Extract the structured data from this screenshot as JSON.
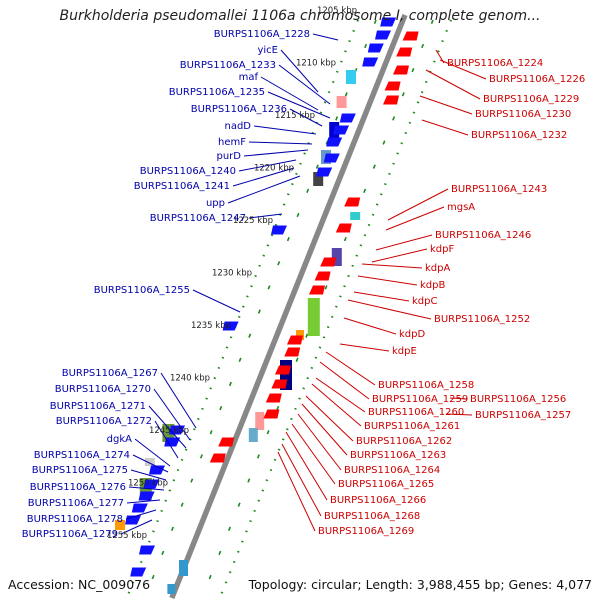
{
  "title": "Burkholderia pseudomallei 1106a chromosome I, complete genom...",
  "footer": {
    "accession": "Accession: NC_009076",
    "topology": "Topology: circular; Length: 3,988,455 bp; Genes: 4,077"
  },
  "colors": {
    "forward_label": "#0000aa",
    "reverse_label": "#cc0000",
    "forward_gene": "#1010ff",
    "reverse_gene": "#ff0000",
    "backbone": "#888888",
    "tick": "#1a8a1a"
  },
  "ticks": [
    "1205 kbp",
    "1210 kbp",
    "1215 kbp",
    "1220 kbp",
    "1225 kbp",
    "1230 kbp",
    "1235 kbp",
    "1240 kbp",
    "1245 kbp",
    "1250 kbp",
    "1255 kbp"
  ],
  "left_labels": [
    "BURPS1106A_1228",
    "yicE",
    "BURPS1106A_1233",
    "maf",
    "BURPS1106A_1235",
    "BURPS1106A_1236",
    "nadD",
    "hemF",
    "purD",
    "BURPS1106A_1240",
    "BURPS1106A_1241",
    "upp",
    "BURPS1106A_1247",
    "BURPS1106A_1255",
    "BURPS1106A_1267",
    "BURPS1106A_1270",
    "BURPS1106A_1271",
    "BURPS1106A_1272",
    "dgkA",
    "BURPS1106A_1274",
    "BURPS1106A_1275",
    "BURPS1106A_1276",
    "BURPS1106A_1277",
    "BURPS1106A_1278",
    "BURPS1106A_1279"
  ],
  "right_labels": [
    "BURPS1106A_1224",
    "BURPS1106A_1226",
    "BURPS1106A_1229",
    "BURPS1106A_1230",
    "BURPS1106A_1232",
    "BURPS1106A_1243",
    "mgsA",
    "BURPS1106A_1246",
    "kdpF",
    "kdpA",
    "kdpB",
    "kdpC",
    "BURPS1106A_1252",
    "kdpD",
    "kdpE",
    "BURPS1106A_1258",
    "BURPS1106A_1259",
    "BURPS1106A_1256",
    "BURPS1106A_1260",
    "BURPS1106A_1257",
    "BURPS1106A_1261",
    "BURPS1106A_1262",
    "BURPS1106A_1263",
    "BURPS1106A_1264",
    "BURPS1106A_1265",
    "BURPS1106A_1266",
    "BURPS1106A_1268",
    "BURPS1106A_1269"
  ]
}
